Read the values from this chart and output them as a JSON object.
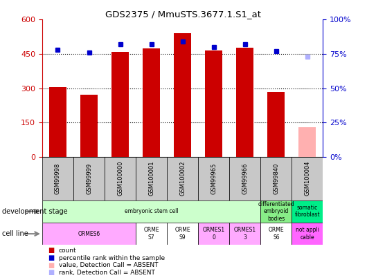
{
  "title": "GDS2375 / MmuSTS.3677.1.S1_at",
  "samples": [
    "GSM99998",
    "GSM99999",
    "GSM100000",
    "GSM100001",
    "GSM100002",
    "GSM99965",
    "GSM99966",
    "GSM99840",
    "GSM100004"
  ],
  "bar_values": [
    305,
    270,
    460,
    475,
    540,
    465,
    478,
    285,
    130
  ],
  "bar_colors": [
    "#cc0000",
    "#cc0000",
    "#cc0000",
    "#cc0000",
    "#cc0000",
    "#cc0000",
    "#cc0000",
    "#cc0000",
    "#ffb0b0"
  ],
  "rank_values": [
    78,
    76,
    82,
    82,
    84,
    80,
    82,
    77,
    73
  ],
  "rank_colors": [
    "#0000cc",
    "#0000cc",
    "#0000cc",
    "#0000cc",
    "#0000cc",
    "#0000cc",
    "#0000cc",
    "#0000cc",
    "#b0b0ff"
  ],
  "ylim_left": [
    0,
    600
  ],
  "ylim_right": [
    0,
    100
  ],
  "yticks_left": [
    0,
    150,
    300,
    450,
    600
  ],
  "ytick_labels_left": [
    "0",
    "150",
    "300",
    "450",
    "600"
  ],
  "yticks_right": [
    0,
    25,
    50,
    75,
    100
  ],
  "ytick_labels_right": [
    "0%",
    "25%",
    "50%",
    "75%",
    "100%"
  ],
  "dev_stage_groups": [
    {
      "label": "embryonic stem cell",
      "start": 0,
      "end": 7,
      "color": "#ccffcc"
    },
    {
      "label": "differentiated\nembryoid\nbodies",
      "start": 7,
      "end": 8,
      "color": "#88ee88"
    },
    {
      "label": "somatic\nfibroblast",
      "start": 8,
      "end": 9,
      "color": "#00ee88"
    }
  ],
  "cell_line_groups": [
    {
      "label": "ORMES6",
      "start": 0,
      "end": 3,
      "color": "#ffaaff"
    },
    {
      "label": "ORME\nS7",
      "start": 3,
      "end": 4,
      "color": "#ffffff"
    },
    {
      "label": "ORME\nS9",
      "start": 4,
      "end": 5,
      "color": "#ffffff"
    },
    {
      "label": "ORMES1\n0",
      "start": 5,
      "end": 6,
      "color": "#ffaaff"
    },
    {
      "label": "ORMES1\n3",
      "start": 6,
      "end": 7,
      "color": "#ffaaff"
    },
    {
      "label": "ORME\nS6",
      "start": 7,
      "end": 8,
      "color": "#ffffff"
    },
    {
      "label": "not appli\ncable",
      "start": 8,
      "end": 9,
      "color": "#ff66ff"
    }
  ],
  "legend_items": [
    {
      "label": "count",
      "color": "#cc0000"
    },
    {
      "label": "percentile rank within the sample",
      "color": "#0000cc"
    },
    {
      "label": "value, Detection Call = ABSENT",
      "color": "#ffb0b0"
    },
    {
      "label": "rank, Detection Call = ABSENT",
      "color": "#b0b0ff"
    }
  ],
  "bar_width": 0.55
}
